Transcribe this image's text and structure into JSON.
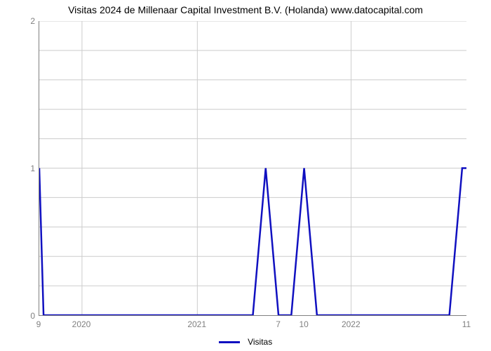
{
  "chart": {
    "type": "line",
    "title": "Visitas 2024 de Millenaar Capital Investment B.V. (Holanda) www.datocapital.com",
    "title_fontsize": 14,
    "background_color": "#ffffff",
    "grid_color": "#cccccc",
    "axis_line_color": "#808080",
    "tick_label_color": "#808080",
    "tick_label_fontsize": 12,
    "line_color": "#1010c0",
    "line_width": 2.5,
    "xlim": [
      0,
      100
    ],
    "ylim": [
      0,
      2
    ],
    "y_ticks": [
      {
        "pos": 0,
        "label": "0"
      },
      {
        "pos": 50,
        "label": "1"
      },
      {
        "pos": 100,
        "label": "2"
      }
    ],
    "y_minor_ticks": [
      10,
      20,
      30,
      40,
      60,
      70,
      80,
      90
    ],
    "x_ticks": [
      {
        "pos": 0,
        "label": "9"
      },
      {
        "pos": 10,
        "label": "2020"
      },
      {
        "pos": 37,
        "label": "2021"
      },
      {
        "pos": 56,
        "label": "7"
      },
      {
        "pos": 62,
        "label": "10"
      },
      {
        "pos": 73,
        "label": "2022"
      },
      {
        "pos": 100,
        "label": "11"
      }
    ],
    "x_gridlines": [
      10,
      37,
      73
    ],
    "series": {
      "name": "Visitas",
      "points": [
        [
          0,
          1
        ],
        [
          1,
          0
        ],
        [
          50,
          0
        ],
        [
          53,
          1
        ],
        [
          56,
          0
        ],
        [
          59,
          0
        ],
        [
          62,
          1
        ],
        [
          65,
          0
        ],
        [
          96,
          0
        ],
        [
          99,
          1
        ],
        [
          100,
          1
        ]
      ]
    },
    "legend": {
      "label": "Visitas",
      "color": "#1010c0"
    }
  }
}
